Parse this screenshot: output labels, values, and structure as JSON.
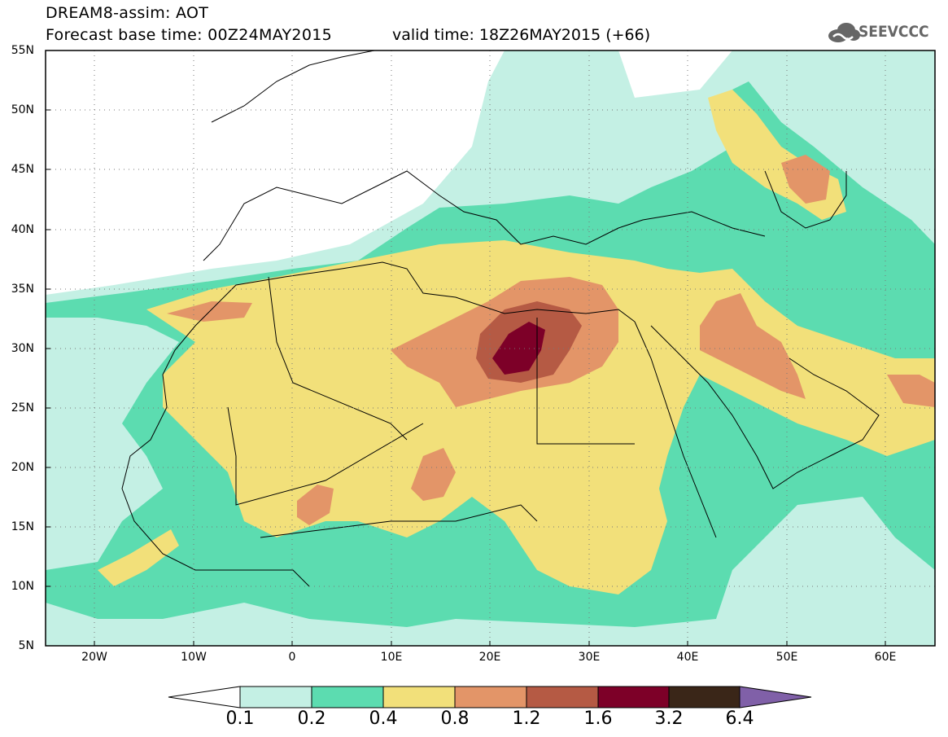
{
  "header": {
    "title_line1": "DREAM8-assim: AOT",
    "title_line2": "Forecast base time: 00Z24MAY2015",
    "valid_time": "valid time: 18Z26MAY2015 (+66)",
    "logo_text": "SEEVCCC"
  },
  "map": {
    "projection": "lat-lon",
    "lon_range": [
      -25,
      65
    ],
    "lat_range": [
      5,
      55
    ],
    "lat_ticks": [
      "5N",
      "10N",
      "15N",
      "20N",
      "25N",
      "30N",
      "35N",
      "40N",
      "45N",
      "50N",
      "55N"
    ],
    "lon_ticks": [
      "20W",
      "10W",
      "0",
      "10E",
      "20E",
      "30E",
      "40E",
      "50E",
      "60E"
    ],
    "grid": "dotted",
    "field": "Aerosol optical thickness (dust)"
  },
  "colorbar": {
    "labels": [
      "0.1",
      "0.2",
      "0.4",
      "0.8",
      "1.2",
      "1.6",
      "3.2",
      "6.4"
    ],
    "colors": [
      "#ffffff",
      "#c4f0e4",
      "#5cdcb0",
      "#f2e07a",
      "#e39568",
      "#b55a44",
      "#7d0028",
      "#3a2618",
      "#8060a8"
    ]
  }
}
